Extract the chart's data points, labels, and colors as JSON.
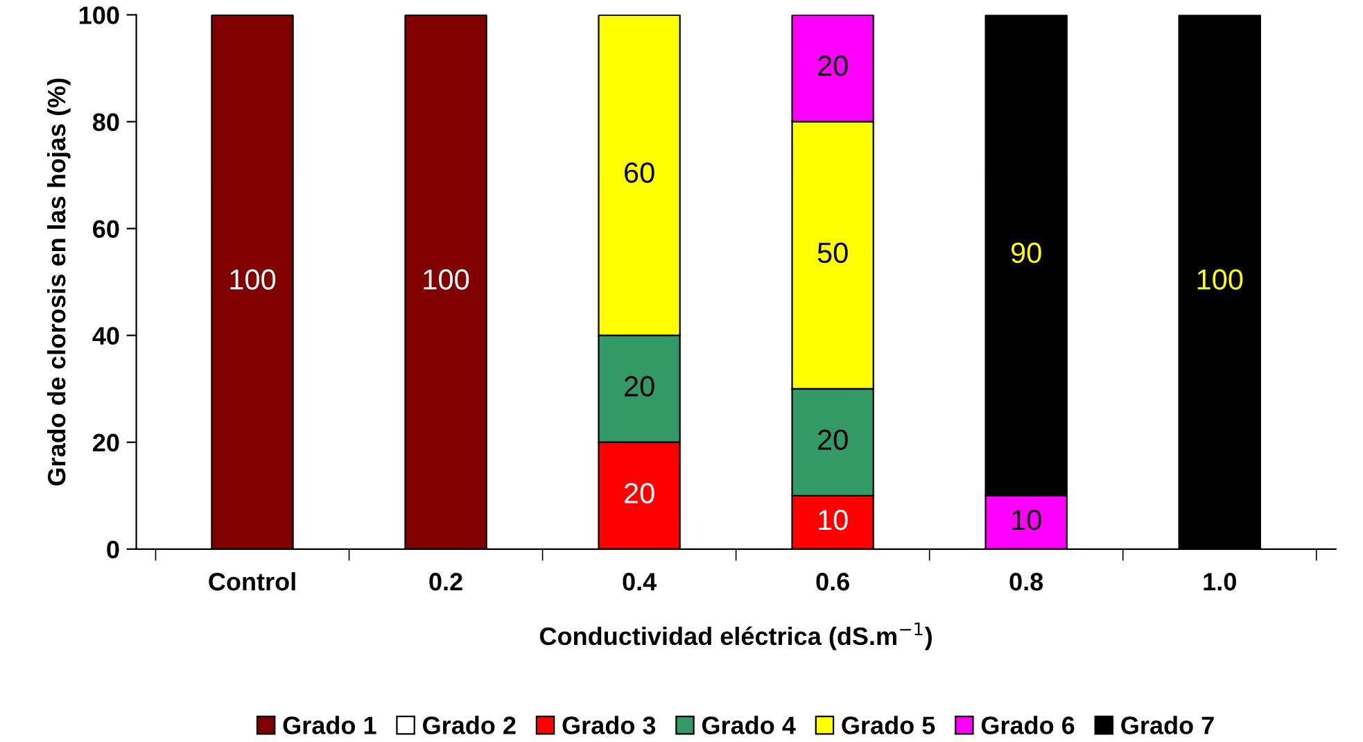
{
  "chart_data": {
    "type": "bar",
    "stacked": true,
    "xlabel": "Conductividad eléctrica (dS.m$^{−1}$)",
    "ylabel": "Grado de clorosis en las hojas (%)",
    "categories": [
      "Control",
      "0.2",
      "0.4",
      "0.6",
      "0.8",
      "1.0"
    ],
    "series": [
      {
        "name": "Grado 1",
        "color": "#800000",
        "values": [
          100,
          100,
          0,
          0,
          0,
          0
        ],
        "value_labels": [
          "100",
          "100",
          null,
          null,
          null,
          null
        ]
      },
      {
        "name": "Grado 2",
        "color": "#ffffff",
        "values": [
          0,
          0,
          0,
          0,
          0,
          0
        ],
        "value_labels": [
          null,
          null,
          null,
          null,
          null,
          null
        ]
      },
      {
        "name": "Grado 3",
        "color": "#ff0000",
        "values": [
          0,
          0,
          20,
          10,
          0,
          0
        ],
        "value_labels": [
          null,
          null,
          "20",
          "10",
          null,
          null
        ]
      },
      {
        "name": "Grado 4",
        "color": "#339966",
        "values": [
          0,
          0,
          20,
          20,
          0,
          0
        ],
        "value_labels": [
          null,
          null,
          "20",
          "20",
          null,
          null
        ]
      },
      {
        "name": "Grado 5",
        "color": "#ffff00",
        "values": [
          0,
          0,
          60,
          50,
          0,
          0
        ],
        "value_labels": [
          null,
          null,
          "60",
          "50",
          null,
          null
        ]
      },
      {
        "name": "Grado 6",
        "color": "#ff00ff",
        "values": [
          0,
          0,
          0,
          20,
          10,
          0
        ],
        "value_labels": [
          null,
          null,
          null,
          "20",
          "10",
          null
        ]
      },
      {
        "name": "Grado 7",
        "color": "#000000",
        "values": [
          0,
          0,
          0,
          0,
          90,
          100
        ],
        "value_labels": [
          null,
          null,
          null,
          null,
          "90",
          "100"
        ]
      }
    ],
    "ylim": [
      0,
      100
    ],
    "yticks": [
      0,
      20,
      40,
      60,
      80,
      100
    ],
    "grid": false,
    "legend": "bottom"
  }
}
